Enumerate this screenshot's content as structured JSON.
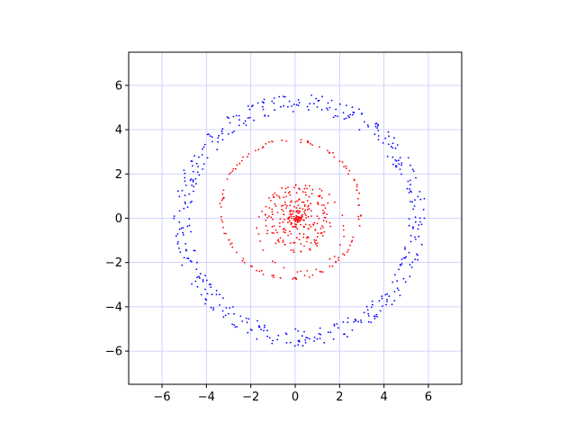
{
  "chart_data": {
    "type": "scatter",
    "title": "",
    "xlabel": "",
    "ylabel": "",
    "xlim": [
      -7.5,
      7.5
    ],
    "ylim": [
      -7.5,
      7.5
    ],
    "xticks": [
      -6,
      -4,
      -2,
      0,
      2,
      4,
      6
    ],
    "yticks": [
      -6,
      -4,
      -2,
      0,
      2,
      4,
      6
    ],
    "grid": true,
    "grid_color": "#c8c8ff",
    "legend": "none",
    "series": [
      {
        "color": "#0000ff",
        "marker": "dot",
        "rings": [
          {
            "cx": 0.2,
            "cy": -0.1,
            "r_min": 4.9,
            "r_max": 5.7,
            "count": 420
          }
        ]
      },
      {
        "color": "#ff0000",
        "marker": "dot",
        "rings": [
          {
            "cx": -0.2,
            "cy": 0.4,
            "r_min": 3.05,
            "r_max": 3.2,
            "count": 115
          },
          {
            "cx": 0.25,
            "cy": -0.45,
            "r_min": 1.9,
            "r_max": 2.0,
            "count": 30
          },
          {
            "cx": 0.1,
            "cy": 0.0,
            "r_min": 1.1,
            "r_max": 1.55,
            "count": 110
          },
          {
            "cx": 0.1,
            "cy": 0.0,
            "r_min": 0.05,
            "r_max": 1.0,
            "count": 150
          }
        ]
      }
    ]
  }
}
